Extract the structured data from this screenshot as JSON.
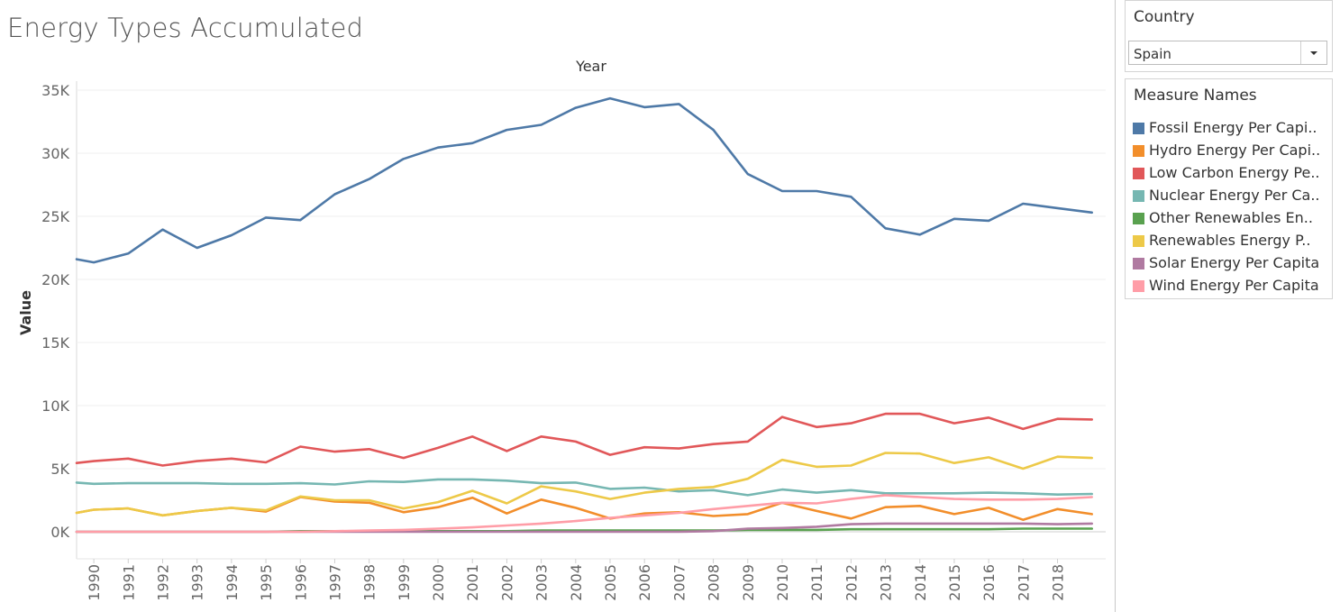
{
  "title": "Energy Types Accumulated",
  "filters": {
    "country": {
      "label": "Country",
      "selected": "Spain"
    }
  },
  "legend": {
    "title": "Measure Names",
    "items": [
      {
        "label": "Fossil Energy Per Capi..",
        "color": "#4e79a7"
      },
      {
        "label": "Hydro Energy Per Capi..",
        "color": "#f28e2b"
      },
      {
        "label": "Low Carbon Energy Pe..",
        "color": "#e15759"
      },
      {
        "label": "Nuclear Energy Per Ca..",
        "color": "#76b7b2"
      },
      {
        "label": "Other Renewables En..",
        "color": "#59a14f"
      },
      {
        "label": "Renewables Energy P..",
        "color": "#edc948"
      },
      {
        "label": "Solar Energy Per Capita",
        "color": "#b07aa1"
      },
      {
        "label": "Wind Energy Per Capita",
        "color": "#ff9da7"
      }
    ]
  },
  "chart_data": {
    "type": "line",
    "xlabel": "Year",
    "ylabel": "Value",
    "x_range": [
      1989.5,
      2019.4
    ],
    "ylim": [
      -2000,
      36500
    ],
    "yticks": [
      0,
      5000,
      10000,
      15000,
      20000,
      25000,
      30000,
      35000
    ],
    "ytick_labels": [
      "0K",
      "5K",
      "10K",
      "15K",
      "20K",
      "25K",
      "30K",
      "35K"
    ],
    "x": [
      1989.5,
      1990,
      1991,
      1992,
      1993,
      1994,
      1995,
      1996,
      1997,
      1998,
      1999,
      2000,
      2001,
      2002,
      2003,
      2004,
      2005,
      2006,
      2007,
      2008,
      2009,
      2010,
      2011,
      2012,
      2013,
      2014,
      2015,
      2016,
      2017,
      2018,
      2019
    ],
    "xtick_labels": [
      "1990",
      "1991",
      "1992",
      "1993",
      "1994",
      "1995",
      "1996",
      "1997",
      "1998",
      "1999",
      "2000",
      "2001",
      "2002",
      "2003",
      "2004",
      "2005",
      "2006",
      "2007",
      "2008",
      "2009",
      "2010",
      "2011",
      "2012",
      "2013",
      "2014",
      "2015",
      "2016",
      "2017",
      "2018"
    ],
    "grid": true,
    "legend_position": "right",
    "series": [
      {
        "name": "Fossil Energy Per Capi..",
        "color": "#4e79a7",
        "values": [
          21600,
          21350,
          22050,
          23950,
          22500,
          23500,
          24900,
          24700,
          26750,
          27950,
          29550,
          30450,
          30800,
          31850,
          32250,
          33600,
          34350,
          33650,
          33900,
          31850,
          28350,
          27000,
          27000,
          26550,
          24050,
          23550,
          24800,
          24650,
          26000,
          25650,
          25300
        ]
      },
      {
        "name": "Hydro Energy Per Capi..",
        "color": "#f28e2b",
        "values": [
          1500,
          1750,
          1850,
          1300,
          1650,
          1900,
          1600,
          2750,
          2400,
          2300,
          1550,
          1950,
          2700,
          1450,
          2550,
          1900,
          1050,
          1450,
          1550,
          1250,
          1400,
          2300,
          1650,
          1050,
          1950,
          2050,
          1400,
          1900,
          950,
          1800,
          1400
        ]
      },
      {
        "name": "Low Carbon Energy Pe..",
        "color": "#e15759",
        "values": [
          5450,
          5600,
          5800,
          5250,
          5600,
          5800,
          5500,
          6750,
          6350,
          6550,
          5850,
          6650,
          7550,
          6400,
          7550,
          7150,
          6100,
          6700,
          6600,
          6950,
          7150,
          9100,
          8300,
          8600,
          9350,
          9350,
          8600,
          9050,
          8150,
          8950,
          8900
        ]
      },
      {
        "name": "Nuclear Energy Per Ca..",
        "color": "#76b7b2",
        "values": [
          3900,
          3800,
          3850,
          3850,
          3850,
          3800,
          3800,
          3850,
          3750,
          4000,
          3950,
          4150,
          4150,
          4050,
          3850,
          3900,
          3400,
          3500,
          3200,
          3300,
          2900,
          3350,
          3100,
          3300,
          3050,
          3050,
          3050,
          3100,
          3050,
          2950,
          3000
        ]
      },
      {
        "name": "Other Renewables En..",
        "color": "#59a14f",
        "values": [
          0,
          0,
          0,
          0,
          0,
          0,
          0,
          50,
          50,
          50,
          50,
          50,
          50,
          50,
          100,
          100,
          100,
          100,
          100,
          100,
          150,
          150,
          150,
          200,
          200,
          200,
          200,
          200,
          250,
          250,
          250
        ]
      },
      {
        "name": "Renewables Energy P..",
        "color": "#edc948",
        "values": [
          1500,
          1750,
          1850,
          1300,
          1650,
          1900,
          1700,
          2800,
          2500,
          2500,
          1850,
          2350,
          3250,
          2250,
          3600,
          3200,
          2600,
          3100,
          3400,
          3550,
          4200,
          5700,
          5150,
          5250,
          6250,
          6200,
          5450,
          5900,
          5000,
          5950,
          5850
        ]
      },
      {
        "name": "Solar Energy Per Capita",
        "color": "#b07aa1",
        "values": [
          0,
          0,
          0,
          0,
          0,
          0,
          0,
          0,
          0,
          0,
          0,
          0,
          0,
          0,
          0,
          0,
          0,
          0,
          0,
          50,
          250,
          300,
          400,
          600,
          650,
          650,
          650,
          650,
          650,
          600,
          650
        ]
      },
      {
        "name": "Wind Energy Per Capita",
        "color": "#ff9da7",
        "values": [
          0,
          0,
          0,
          0,
          0,
          0,
          0,
          0,
          50,
          100,
          150,
          250,
          350,
          500,
          650,
          850,
          1100,
          1300,
          1500,
          1800,
          2050,
          2300,
          2250,
          2600,
          2900,
          2750,
          2600,
          2550,
          2550,
          2600,
          2750
        ]
      }
    ]
  }
}
